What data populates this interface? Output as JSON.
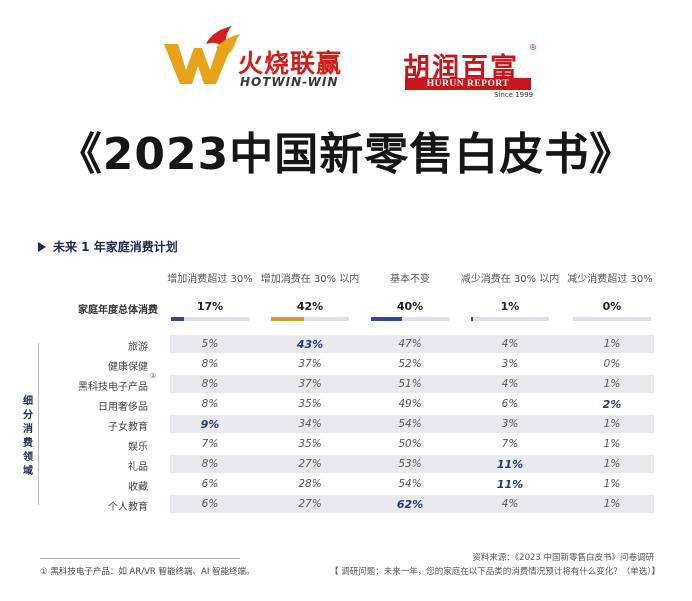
{
  "logos": {
    "left_cn": "火烧联赢",
    "left_en": "HOTWIN-WIN",
    "right_cn": "胡润百富",
    "right_reg": "®",
    "right_en": "HURUN REPORT",
    "right_since": "Since 1999"
  },
  "title": "《2023中国新零售白皮书》",
  "section": {
    "title": "未来 1 年家庭消费计划",
    "columns": [
      "增加消费超过 30%",
      "增加消费在 30% 以内",
      "基本不变",
      "减少消费在 30% 以内",
      "减少消费超过 30%"
    ],
    "total": {
      "label": "家庭年度总体消费",
      "values": [
        "17%",
        "42%",
        "40%",
        "1%",
        "0%"
      ],
      "levels": [
        0.17,
        0.42,
        0.4,
        0.01,
        0.0
      ],
      "bar_colors": [
        "#2f4a8e",
        "#c9a227",
        "#2f4a8e",
        "#2f4a8e",
        "#2f4a8e"
      ]
    },
    "side_label": "细分消费领域",
    "footnote_marker": "①",
    "rows": [
      {
        "label": "旅游",
        "values": [
          "5%",
          "43%",
          "47%",
          "4%",
          "1%"
        ],
        "highlight": [
          false,
          true,
          false,
          false,
          false
        ]
      },
      {
        "label": "健康保健",
        "values": [
          "8%",
          "37%",
          "52%",
          "3%",
          "0%"
        ],
        "highlight": [
          false,
          false,
          false,
          false,
          false
        ]
      },
      {
        "label": "黑科技电子产品",
        "values": [
          "8%",
          "37%",
          "51%",
          "4%",
          "1%"
        ],
        "highlight": [
          false,
          false,
          false,
          false,
          false
        ]
      },
      {
        "label": "日用奢侈品",
        "values": [
          "8%",
          "35%",
          "49%",
          "6%",
          "2%"
        ],
        "highlight": [
          false,
          false,
          false,
          false,
          true
        ]
      },
      {
        "label": "子女教育",
        "values": [
          "9%",
          "34%",
          "54%",
          "3%",
          "1%"
        ],
        "highlight": [
          true,
          false,
          false,
          false,
          false
        ]
      },
      {
        "label": "娱乐",
        "values": [
          "7%",
          "35%",
          "50%",
          "7%",
          "1%"
        ],
        "highlight": [
          false,
          false,
          false,
          false,
          false
        ]
      },
      {
        "label": "礼品",
        "values": [
          "8%",
          "27%",
          "53%",
          "11%",
          "1%"
        ],
        "highlight": [
          false,
          false,
          false,
          true,
          false
        ]
      },
      {
        "label": "收藏",
        "values": [
          "6%",
          "28%",
          "54%",
          "11%",
          "1%"
        ],
        "highlight": [
          false,
          false,
          false,
          true,
          false
        ]
      },
      {
        "label": "个人教育",
        "values": [
          "6%",
          "27%",
          "62%",
          "4%",
          "1%"
        ],
        "highlight": [
          false,
          false,
          true,
          false,
          false
        ]
      }
    ]
  },
  "footer": {
    "footnote": "① 黑科技电子产品：如 AR/VR 智能终端、AI 智能终端。",
    "source": "资料来源：《2023 中国新零售白皮书》问卷调研",
    "question": "【 调研问题：未来一年，您的家庭在以下品类的消费情况预计将有什么变化？（单选）】"
  }
}
